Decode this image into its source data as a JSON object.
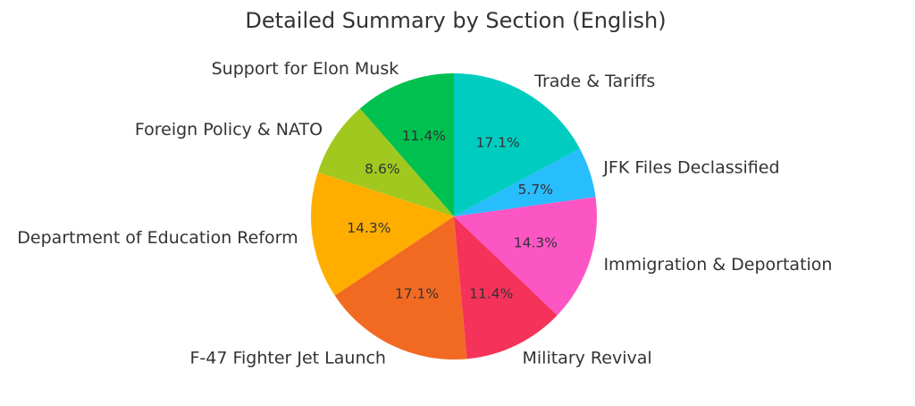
{
  "chart_data": {
    "type": "pie",
    "title": "Detailed Summary by Section (English)",
    "start_angle_deg": 90,
    "direction": "counterclockwise",
    "slices": [
      {
        "label": "Support for Elon Musk",
        "percent": 11.4,
        "color": "#00c050"
      },
      {
        "label": "Foreign Policy & NATO",
        "percent": 8.6,
        "color": "#a0c81e"
      },
      {
        "label": "Department of Education Reform",
        "percent": 14.3,
        "color": "#ffae00"
      },
      {
        "label": "F-47 Fighter Jet Launch",
        "percent": 17.1,
        "color": "#f26a22"
      },
      {
        "label": "Military Revival",
        "percent": 11.4,
        "color": "#f5325a"
      },
      {
        "label": "Immigration & Deportation",
        "percent": 14.3,
        "color": "#fc56c5"
      },
      {
        "label": "JFK Files Declassified",
        "percent": 5.7,
        "color": "#28bdfc"
      },
      {
        "label": "Trade & Tariffs",
        "percent": 17.1,
        "color": "#00cdc0"
      }
    ]
  }
}
